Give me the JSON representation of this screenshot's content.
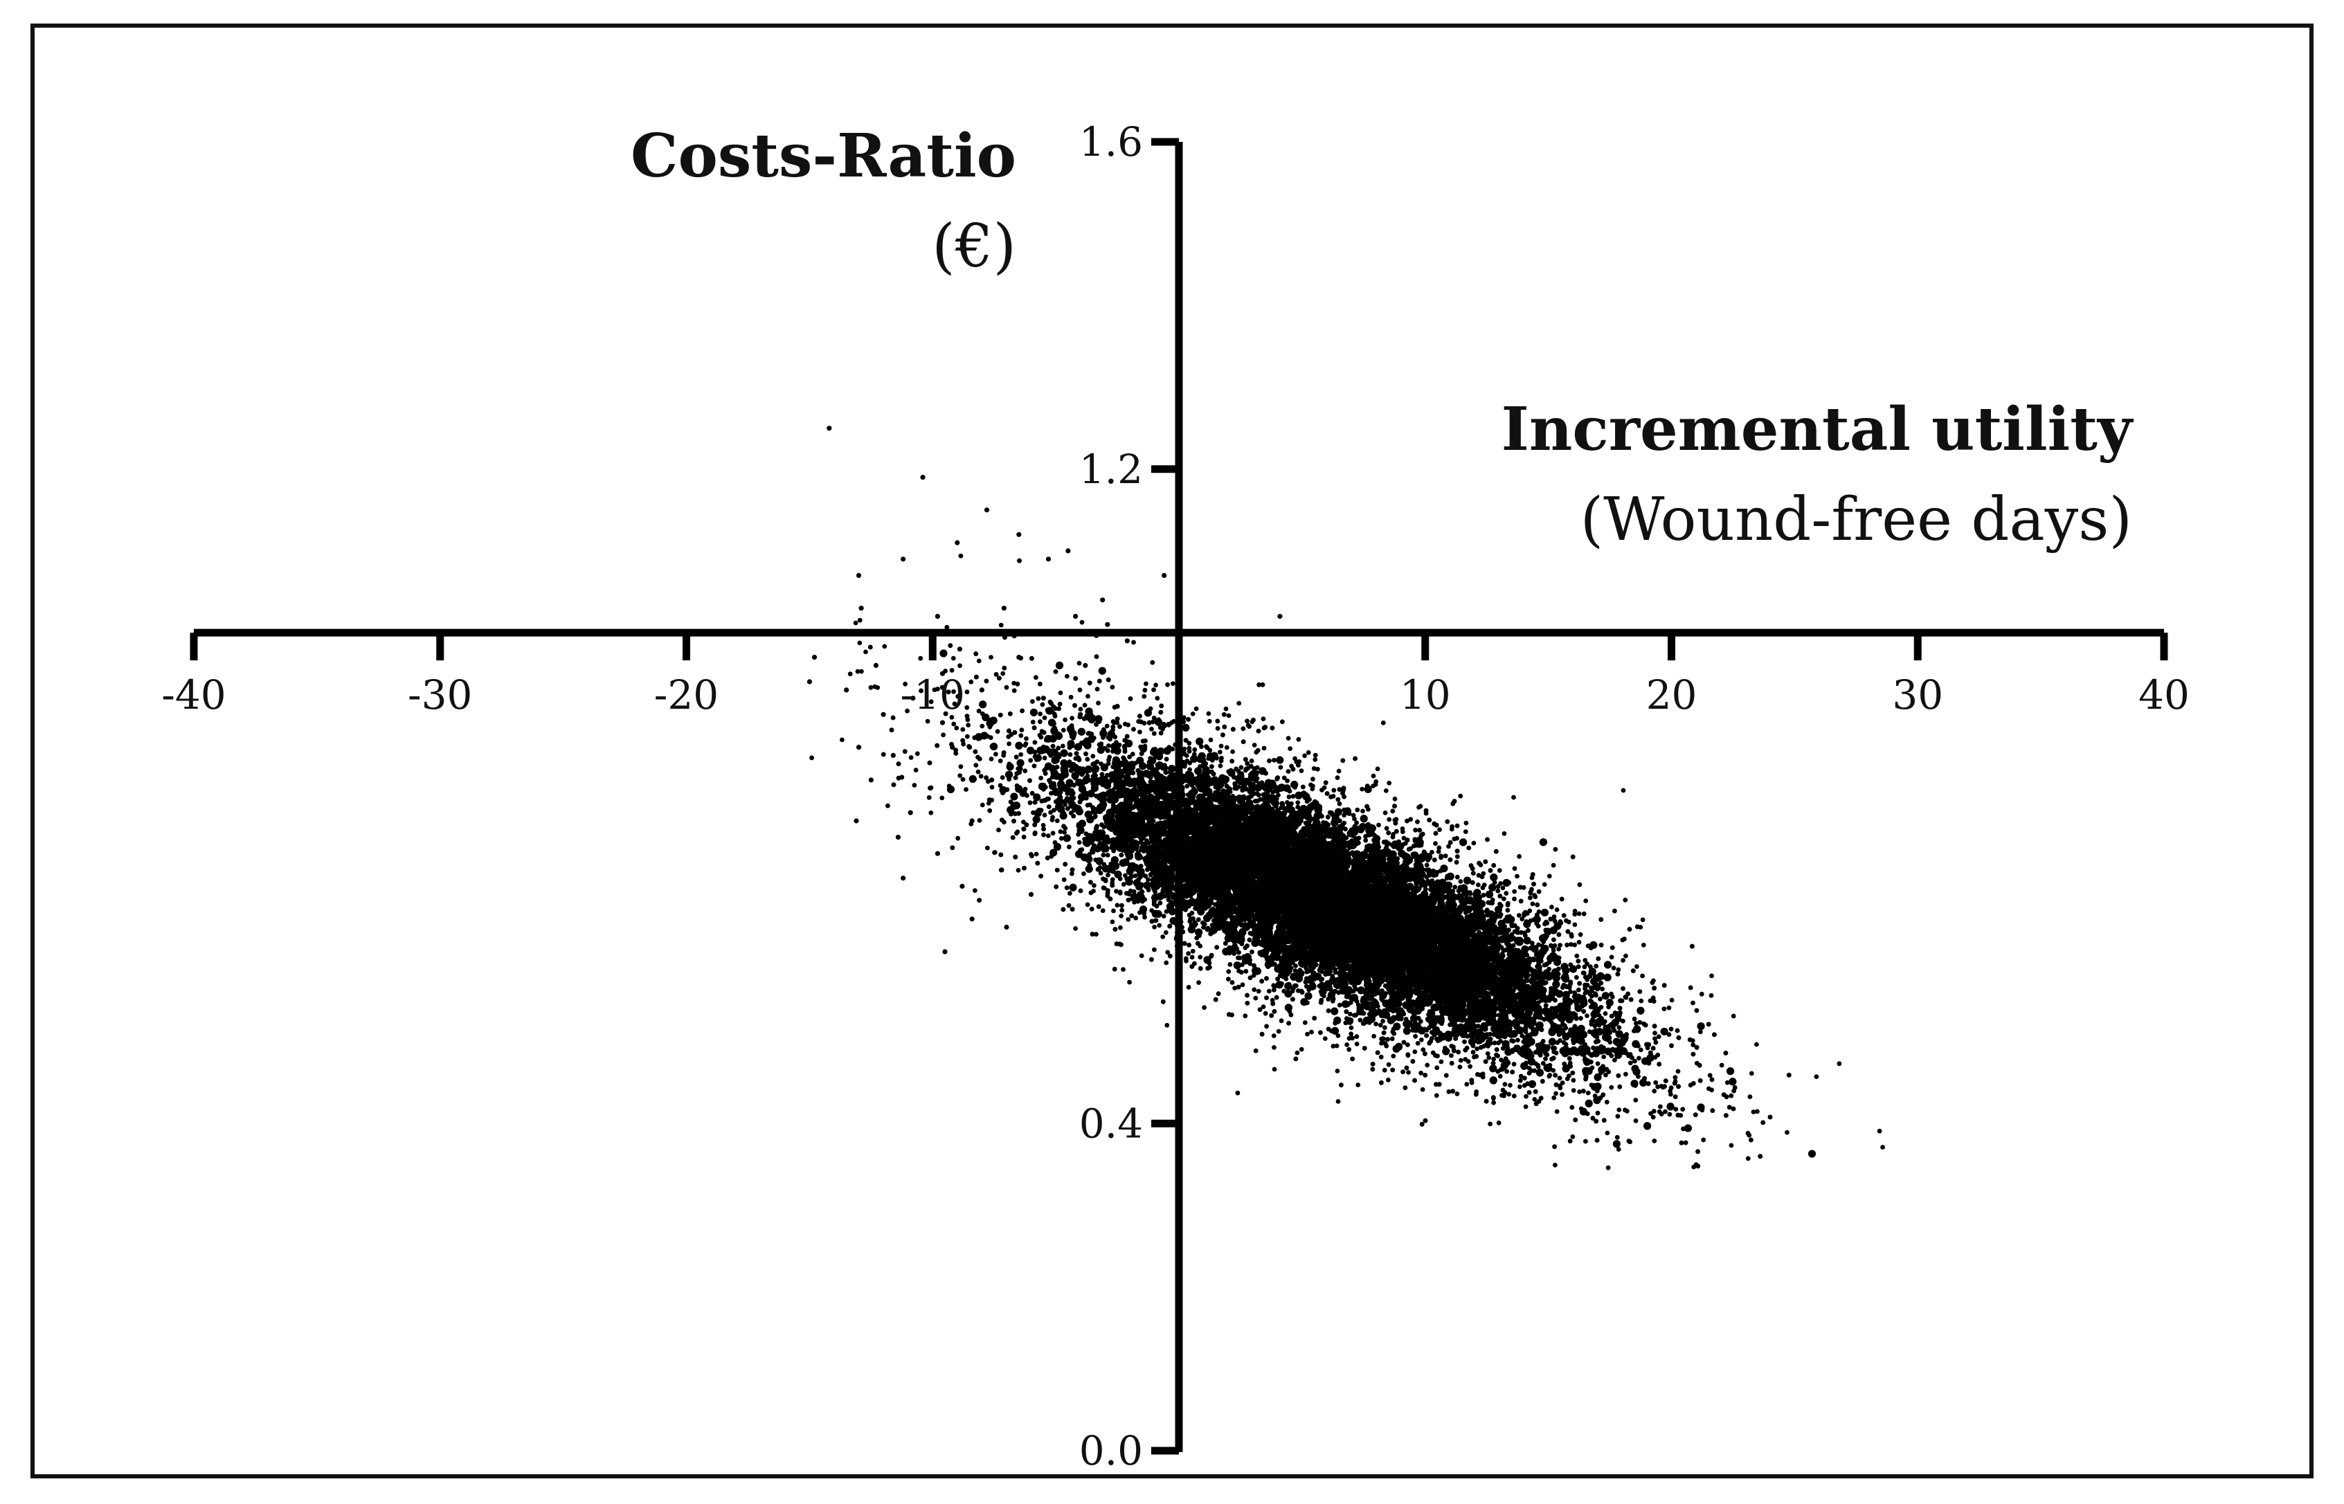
{
  "chart_data": {
    "type": "scatter",
    "y_title": "Costs-Ratio",
    "y_subtitle": "(€)",
    "x_title": "Incremental utility",
    "x_subtitle": "(Wound-free days)",
    "xlim": [
      -40,
      40
    ],
    "ylim": [
      0.0,
      1.6
    ],
    "x_axis_crosses_y_at": 1.0,
    "y_axis_crosses_x_at": 0,
    "x_ticks": [
      -40,
      -30,
      -20,
      -10,
      10,
      20,
      30,
      40
    ],
    "x_tick_labels": [
      "-40",
      "-30",
      "-20",
      "-10",
      "10",
      "20",
      "30",
      "40"
    ],
    "y_ticks": [
      0.0,
      0.4,
      1.2,
      1.6
    ],
    "y_tick_labels": [
      "0.0",
      "0.4",
      "1.2",
      "1.6"
    ],
    "grid": false,
    "legend": "none",
    "marker_color": "#000000",
    "cloud": {
      "description_center_x": 6.0,
      "description_center_y": 0.67,
      "x_range": [
        -15,
        29
      ],
      "y_range": [
        0.33,
        1.25
      ]
    },
    "points": [
      [
        -14.2,
        1.25
      ],
      [
        -10.4,
        1.19
      ],
      [
        -7.8,
        1.15
      ],
      [
        -6.5,
        1.12
      ],
      [
        -9.0,
        1.11
      ],
      [
        -11.2,
        1.09
      ],
      [
        -13.0,
        1.07
      ],
      [
        -5.3,
        1.09
      ],
      [
        -4.5,
        1.1
      ],
      [
        -0.6,
        1.07
      ],
      [
        -3.1,
        1.04
      ],
      [
        -12.9,
        1.03
      ],
      [
        -9.8,
        1.02
      ],
      [
        -7.1,
        1.03
      ],
      [
        -4.2,
        1.02
      ],
      [
        -2.9,
        1.01
      ],
      [
        4.1,
        1.02
      ],
      [
        -14.8,
        0.97
      ],
      [
        -12.3,
        0.96
      ],
      [
        -8.9,
        0.98
      ],
      [
        -6.5,
        0.97
      ],
      [
        -3.8,
        0.96
      ],
      [
        -2.1,
        0.99
      ],
      [
        -15.0,
        0.94
      ],
      [
        -13.5,
        0.93
      ],
      [
        -10.8,
        0.92
      ],
      [
        -8.0,
        0.93
      ],
      [
        -5.5,
        0.92
      ],
      [
        -2.5,
        0.91
      ],
      [
        -12.0,
        0.9
      ],
      [
        -9.6,
        0.89
      ],
      [
        -6.9,
        0.88
      ],
      [
        -4.0,
        0.9
      ],
      [
        -1.2,
        0.89
      ],
      [
        -13.0,
        0.86
      ],
      [
        -11.6,
        0.85
      ],
      [
        -8.5,
        0.86
      ],
      [
        -5.2,
        0.85
      ],
      [
        -2.8,
        0.87
      ],
      [
        -12.5,
        0.82
      ],
      [
        -10.1,
        0.81
      ],
      [
        -7.6,
        0.82
      ],
      [
        -4.6,
        0.81
      ],
      [
        -10.9,
        0.78
      ],
      [
        -8.4,
        0.77
      ],
      [
        -6.3,
        0.76
      ],
      [
        -13.1,
        0.77
      ],
      [
        -11.4,
        0.75
      ],
      [
        -9.8,
        0.73
      ],
      [
        -7.2,
        0.71
      ],
      [
        -11.2,
        0.7
      ],
      [
        -8.8,
        0.69
      ],
      [
        -6.0,
        0.68
      ],
      [
        -8.4,
        0.65
      ],
      [
        -9.5,
        0.61
      ],
      [
        -7.0,
        0.64
      ],
      [
        -9.2,
        0.86
      ],
      [
        -9.6,
        0.95
      ]
    ]
  }
}
